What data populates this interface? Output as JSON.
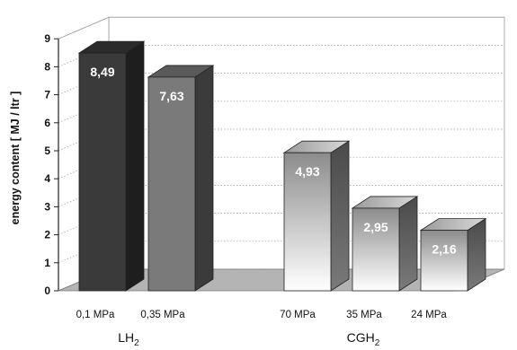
{
  "chart_data": {
    "type": "bar",
    "ylabel": "energy content  [ MJ / ltr ]",
    "ylim": [
      0,
      9
    ],
    "yticks": [
      "0",
      "1",
      "2",
      "3",
      "4",
      "5",
      "6",
      "7",
      "8",
      "9"
    ],
    "grid": true,
    "categories": [
      "0,1 MPa",
      "0,35 MPa",
      "70 MPa",
      "35 MPa",
      "24 MPa"
    ],
    "values": [
      8.49,
      7.63,
      4.93,
      2.95,
      2.16
    ],
    "data_labels": [
      "8,49",
      "7,63",
      "4,93",
      "2,95",
      "2,16"
    ],
    "groups": [
      {
        "label": "LH",
        "sub": "2",
        "members": [
          0,
          1
        ]
      },
      {
        "label": "CGH",
        "sub": "2",
        "members": [
          2,
          3,
          4
        ]
      }
    ],
    "colors": {
      "dark_bar": "#3a3a3a",
      "mid_bar": "#7a7a7a",
      "light_bar_top": "#ffffff",
      "light_bar_bottom": "#8a8a8a",
      "floor": "#b4b4b4"
    }
  }
}
